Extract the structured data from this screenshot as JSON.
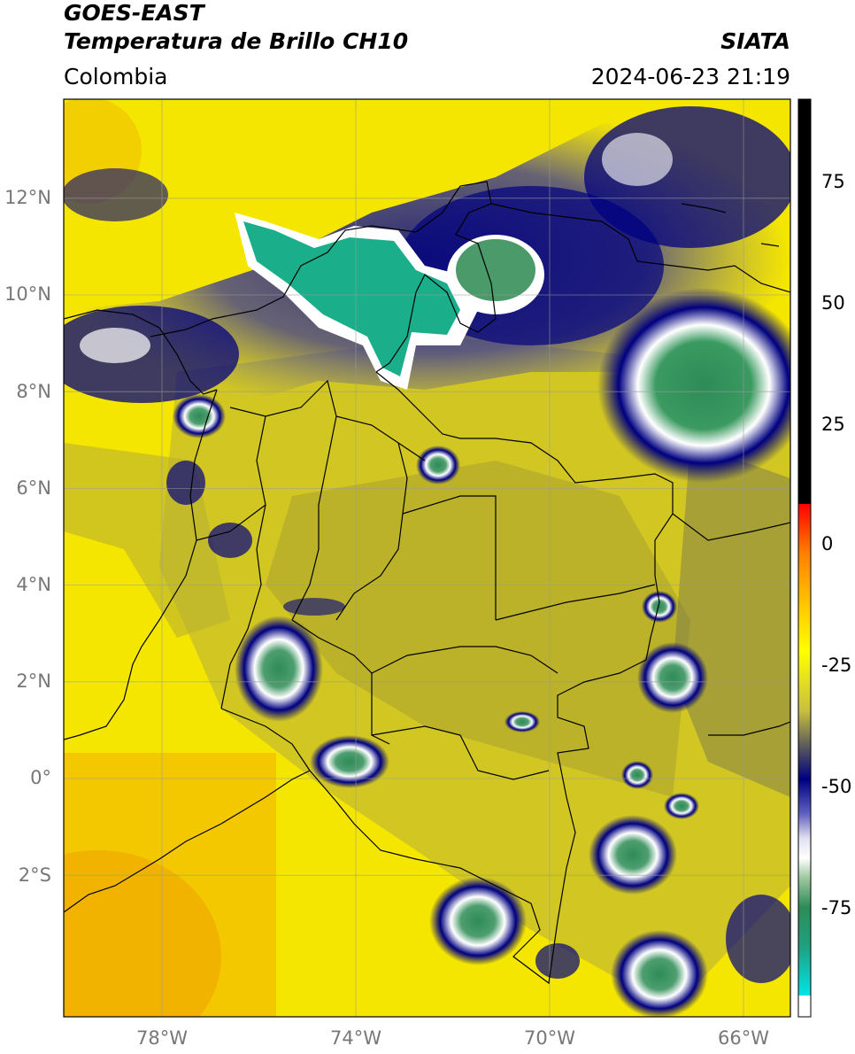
{
  "header": {
    "satellite": "GOES-EAST",
    "product": "Temperatura de Brillo CH10",
    "region": "Colombia",
    "agency": "SIATA",
    "datetime": "2024-06-23 21:19"
  },
  "axes": {
    "lat_ticks": [
      {
        "label": "12°N",
        "value": 12
      },
      {
        "label": "10°N",
        "value": 10
      },
      {
        "label": "8°N",
        "value": 8
      },
      {
        "label": "6°N",
        "value": 6
      },
      {
        "label": "4°N",
        "value": 4
      },
      {
        "label": "2°N",
        "value": 2
      },
      {
        "label": "0°",
        "value": 0
      },
      {
        "label": "2°S",
        "value": -2
      }
    ],
    "lon_ticks": [
      {
        "label": "78°W",
        "value": -78
      },
      {
        "label": "74°W",
        "value": -74
      },
      {
        "label": "70°W",
        "value": -70
      },
      {
        "label": "66°W",
        "value": -66
      }
    ]
  },
  "colorbar": {
    "ticks": [
      {
        "label": "75",
        "value": 75
      },
      {
        "label": "50",
        "value": 50
      },
      {
        "label": "25",
        "value": 25
      },
      {
        "label": "0",
        "value": 0
      },
      {
        "label": "-25",
        "value": -25
      },
      {
        "label": "-50",
        "value": -50
      },
      {
        "label": "-75",
        "value": -75
      }
    ],
    "colors": {
      "high": "#000000",
      "warm": "#ff0000",
      "mid": "#ffff00",
      "cold_blue": "#000080",
      "cold_green": "#2e8b57",
      "coldest": "#00e5e5"
    }
  }
}
